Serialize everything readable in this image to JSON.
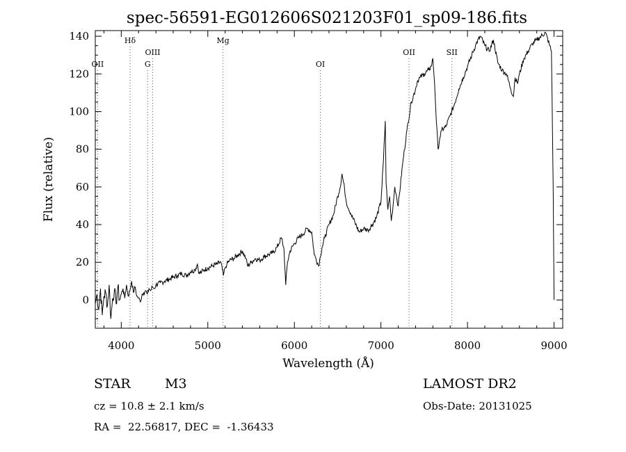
{
  "chart_data": {
    "type": "line",
    "title": "spec-56591-EG012606S021203F01_sp09-186.fits",
    "xlabel": "Wavelength (Å)",
    "ylabel": "Flux (relative)",
    "xlim": [
      3700,
      9100
    ],
    "ylim": [
      -15,
      143
    ],
    "x_ticks": [
      4000,
      5000,
      6000,
      7000,
      8000,
      9000
    ],
    "y_ticks": [
      0,
      20,
      40,
      60,
      80,
      100,
      120,
      140
    ],
    "grid": false,
    "series": [
      {
        "x": [
          3700,
          3720,
          3740,
          3760,
          3780,
          3800,
          3820,
          3840,
          3860,
          3880,
          3900,
          3920,
          3940,
          3960,
          3980,
          4000,
          4020,
          4040,
          4060,
          4080,
          4100,
          4120,
          4140,
          4160,
          4180,
          4200,
          4220,
          4240,
          4260,
          4280,
          4300,
          4320,
          4340,
          4360,
          4380,
          4400,
          4450,
          4500,
          4550,
          4600,
          4650,
          4700,
          4750,
          4800,
          4850,
          4880,
          4900,
          4930,
          4960,
          5000,
          5050,
          5100,
          5150,
          5180,
          5200,
          5220,
          5250,
          5300,
          5350,
          5400,
          5440,
          5460,
          5500,
          5550,
          5600,
          5650,
          5700,
          5750,
          5800,
          5850,
          5880,
          5900,
          5920,
          5950,
          6000,
          6050,
          6100,
          6150,
          6200,
          6230,
          6250,
          6280,
          6300,
          6320,
          6350,
          6400,
          6450,
          6500,
          6530,
          6550,
          6580,
          6600,
          6650,
          6700,
          6750,
          6800,
          6850,
          6900,
          6950,
          7000,
          7030,
          7050,
          7060,
          7080,
          7100,
          7120,
          7140,
          7160,
          7180,
          7200,
          7250,
          7300,
          7350,
          7400,
          7420,
          7450,
          7500,
          7550,
          7580,
          7600,
          7620,
          7640,
          7660,
          7680,
          7700,
          7750,
          7800,
          7850,
          7900,
          7950,
          8000,
          8050,
          8100,
          8150,
          8200,
          8250,
          8300,
          8350,
          8400,
          8450,
          8500,
          8530,
          8550,
          8580,
          8600,
          8650,
          8700,
          8750,
          8800,
          8850,
          8900,
          8950,
          8970,
          8990,
          9000
        ],
        "y": [
          -2,
          3,
          -5,
          6,
          -8,
          2,
          4,
          -3,
          8,
          -10,
          1,
          5,
          -2,
          7,
          0,
          3,
          6,
          1,
          8,
          2,
          5,
          10,
          4,
          7,
          2,
          1,
          -1,
          3,
          4,
          5,
          3,
          6,
          5,
          7,
          6,
          8,
          9,
          10,
          11,
          12,
          13,
          14,
          13,
          15,
          16,
          19,
          14,
          15,
          16,
          17,
          18,
          19,
          20,
          13,
          17,
          19,
          21,
          22,
          24,
          26,
          22,
          18,
          20,
          22,
          21,
          23,
          24,
          25,
          28,
          33,
          27,
          8,
          20,
          26,
          30,
          33,
          35,
          38,
          36,
          24,
          22,
          18,
          23,
          28,
          33,
          40,
          45,
          55,
          60,
          67,
          59,
          52,
          46,
          41,
          36,
          38,
          37,
          40,
          44,
          52,
          75,
          95,
          62,
          48,
          55,
          42,
          50,
          60,
          55,
          50,
          72,
          90,
          105,
          112,
          116,
          118,
          120,
          122,
          124,
          128,
          115,
          95,
          80,
          86,
          90,
          92,
          98,
          104,
          112,
          118,
          124,
          130,
          136,
          140,
          135,
          132,
          138,
          126,
          122,
          120,
          112,
          108,
          118,
          115,
          120,
          128,
          132,
          136,
          138,
          140,
          142,
          135,
          132,
          60,
          0
        ]
      }
    ],
    "line_markers": [
      {
        "label": "OII",
        "x": 3727,
        "row": 3
      },
      {
        "label": "Hδ",
        "x": 4102,
        "row": 1
      },
      {
        "label": "G",
        "x": 4305,
        "row": 3
      },
      {
        "label": "OIII",
        "x": 4363,
        "row": 2
      },
      {
        "label": "Mg",
        "x": 5175,
        "row": 1
      },
      {
        "label": "OI",
        "x": 6300,
        "row": 3
      },
      {
        "label": "OII",
        "x": 7325,
        "row": 2
      },
      {
        "label": "SII",
        "x": 7820,
        "row": 2
      }
    ]
  },
  "info": {
    "object_class": "STAR",
    "subclass": "M3",
    "survey": "LAMOST DR2",
    "cz": "cz = 10.8 ± 2.1 km/s",
    "obs_date": "Obs-Date: 20131025",
    "coords": "RA =  22.56817, DEC =  -1.36433"
  }
}
